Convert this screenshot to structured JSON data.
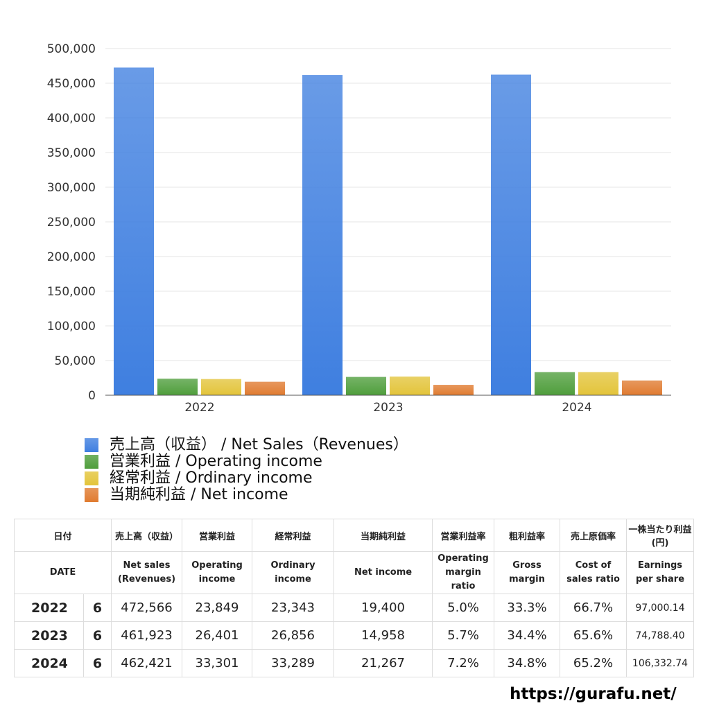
{
  "chart_data": {
    "type": "bar",
    "categories": [
      "2022",
      "2023",
      "2024"
    ],
    "series": [
      {
        "name": "売上高（収益） / Net Sales（Revenues）",
        "values": [
          472566,
          461923,
          462421
        ],
        "color": "#3f7fe0"
      },
      {
        "name": "営業利益 / Operating income",
        "values": [
          23849,
          26401,
          33301
        ],
        "color": "#4f9e3c"
      },
      {
        "name": "経常利益 / Ordinary income",
        "values": [
          23343,
          26856,
          33289
        ],
        "color": "#e3c43a"
      },
      {
        "name": "当期純利益 / Net income",
        "values": [
          19400,
          14958,
          21267
        ],
        "color": "#e07b30"
      }
    ],
    "ylim": [
      0,
      500000
    ],
    "y_ticks": [
      0,
      50000,
      100000,
      150000,
      200000,
      250000,
      300000,
      350000,
      400000,
      450000,
      500000
    ],
    "y_tick_labels": [
      "0",
      "50,000",
      "100,000",
      "150,000",
      "200,000",
      "250,000",
      "300,000",
      "350,000",
      "400,000",
      "450,000",
      "500,000"
    ],
    "grid": true,
    "legend_position": "bottom-left",
    "title": "",
    "xlabel": "",
    "ylabel": ""
  },
  "table": {
    "header_jp": [
      "日付",
      "売上高（収益）",
      "営業利益",
      "経常利益",
      "当期純利益",
      "営業利益率",
      "粗利益率",
      "売上原価率",
      "一株当たり利益\n(円)"
    ],
    "header_en": [
      "DATE",
      "Net sales\n(Revenues)",
      "Operating\nincome",
      "Ordinary\nincome",
      "Net income",
      "Operating\nmargin\nratio",
      "Gross\nmargin",
      "Cost of\nsales ratio",
      "Earnings\nper share"
    ],
    "rows": [
      {
        "year": "2022",
        "month": "6",
        "net_sales": "472,566",
        "operating_income": "23,849",
        "ordinary_income": "23,343",
        "net_income": "19,400",
        "operating_margin": "5.0%",
        "gross_margin": "33.3%",
        "cost_ratio": "66.7%",
        "eps": "97,000.14"
      },
      {
        "year": "2023",
        "month": "6",
        "net_sales": "461,923",
        "operating_income": "26,401",
        "ordinary_income": "26,856",
        "net_income": "14,958",
        "operating_margin": "5.7%",
        "gross_margin": "34.4%",
        "cost_ratio": "65.6%",
        "eps": "74,788.40"
      },
      {
        "year": "2024",
        "month": "6",
        "net_sales": "462,421",
        "operating_income": "33,301",
        "ordinary_income": "33,289",
        "net_income": "21,267",
        "operating_margin": "7.2%",
        "gross_margin": "34.8%",
        "cost_ratio": "65.2%",
        "eps": "106,332.74"
      }
    ]
  },
  "source_url": "https://gurafu.net/"
}
